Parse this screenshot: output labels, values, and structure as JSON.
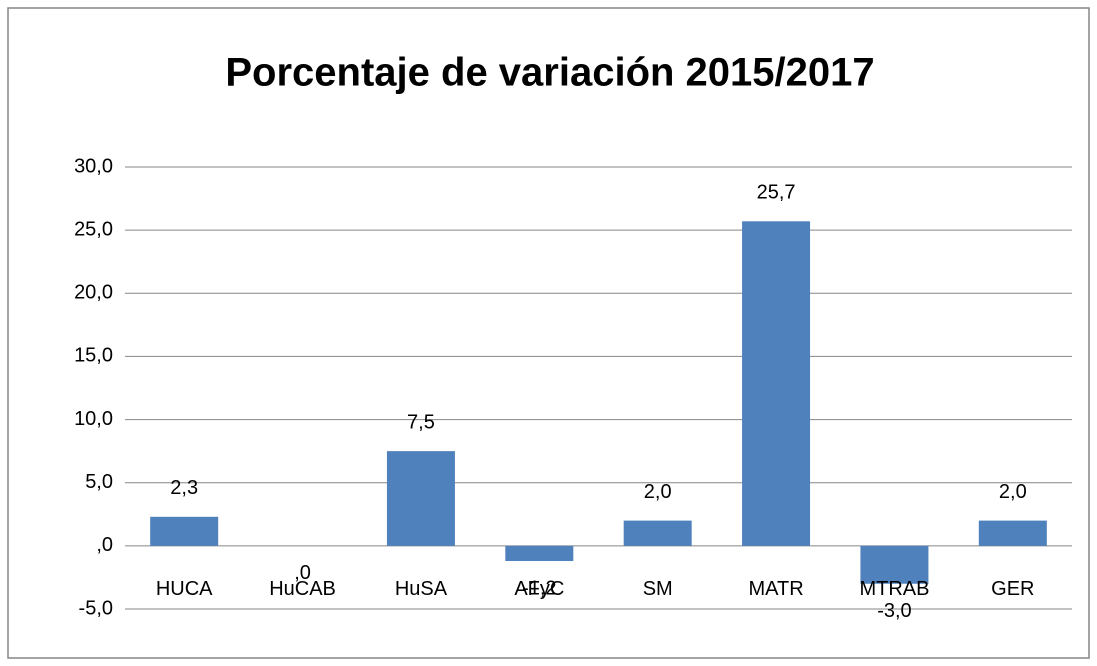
{
  "chart_data": {
    "type": "bar",
    "title": "Porcentaje de variación 2015/2017",
    "categories": [
      "HUCA",
      "HuCAB",
      "HuSA",
      "AFyC",
      "SM",
      "MATR",
      "MTRAB",
      "GER"
    ],
    "values": [
      2.3,
      0,
      7.5,
      -1.2,
      2.0,
      25.7,
      -3.0,
      2.0
    ],
    "value_labels": [
      "2,3",
      ",0",
      "7,5",
      "-1,2",
      "2,0",
      "25,7",
      "-3,0",
      "2,0"
    ],
    "color": "#4f81bd",
    "ylim": [
      -5,
      30
    ],
    "yticks": [
      {
        "value": -5,
        "label": "-5,0"
      },
      {
        "value": 0,
        "label": ",0"
      },
      {
        "value": 5,
        "label": "5,0"
      },
      {
        "value": 10,
        "label": "10,0"
      },
      {
        "value": 15,
        "label": "15,0"
      },
      {
        "value": 20,
        "label": "20,0"
      },
      {
        "value": 25,
        "label": "25,0"
      },
      {
        "value": 30,
        "label": "30,0"
      }
    ],
    "grid": true
  }
}
